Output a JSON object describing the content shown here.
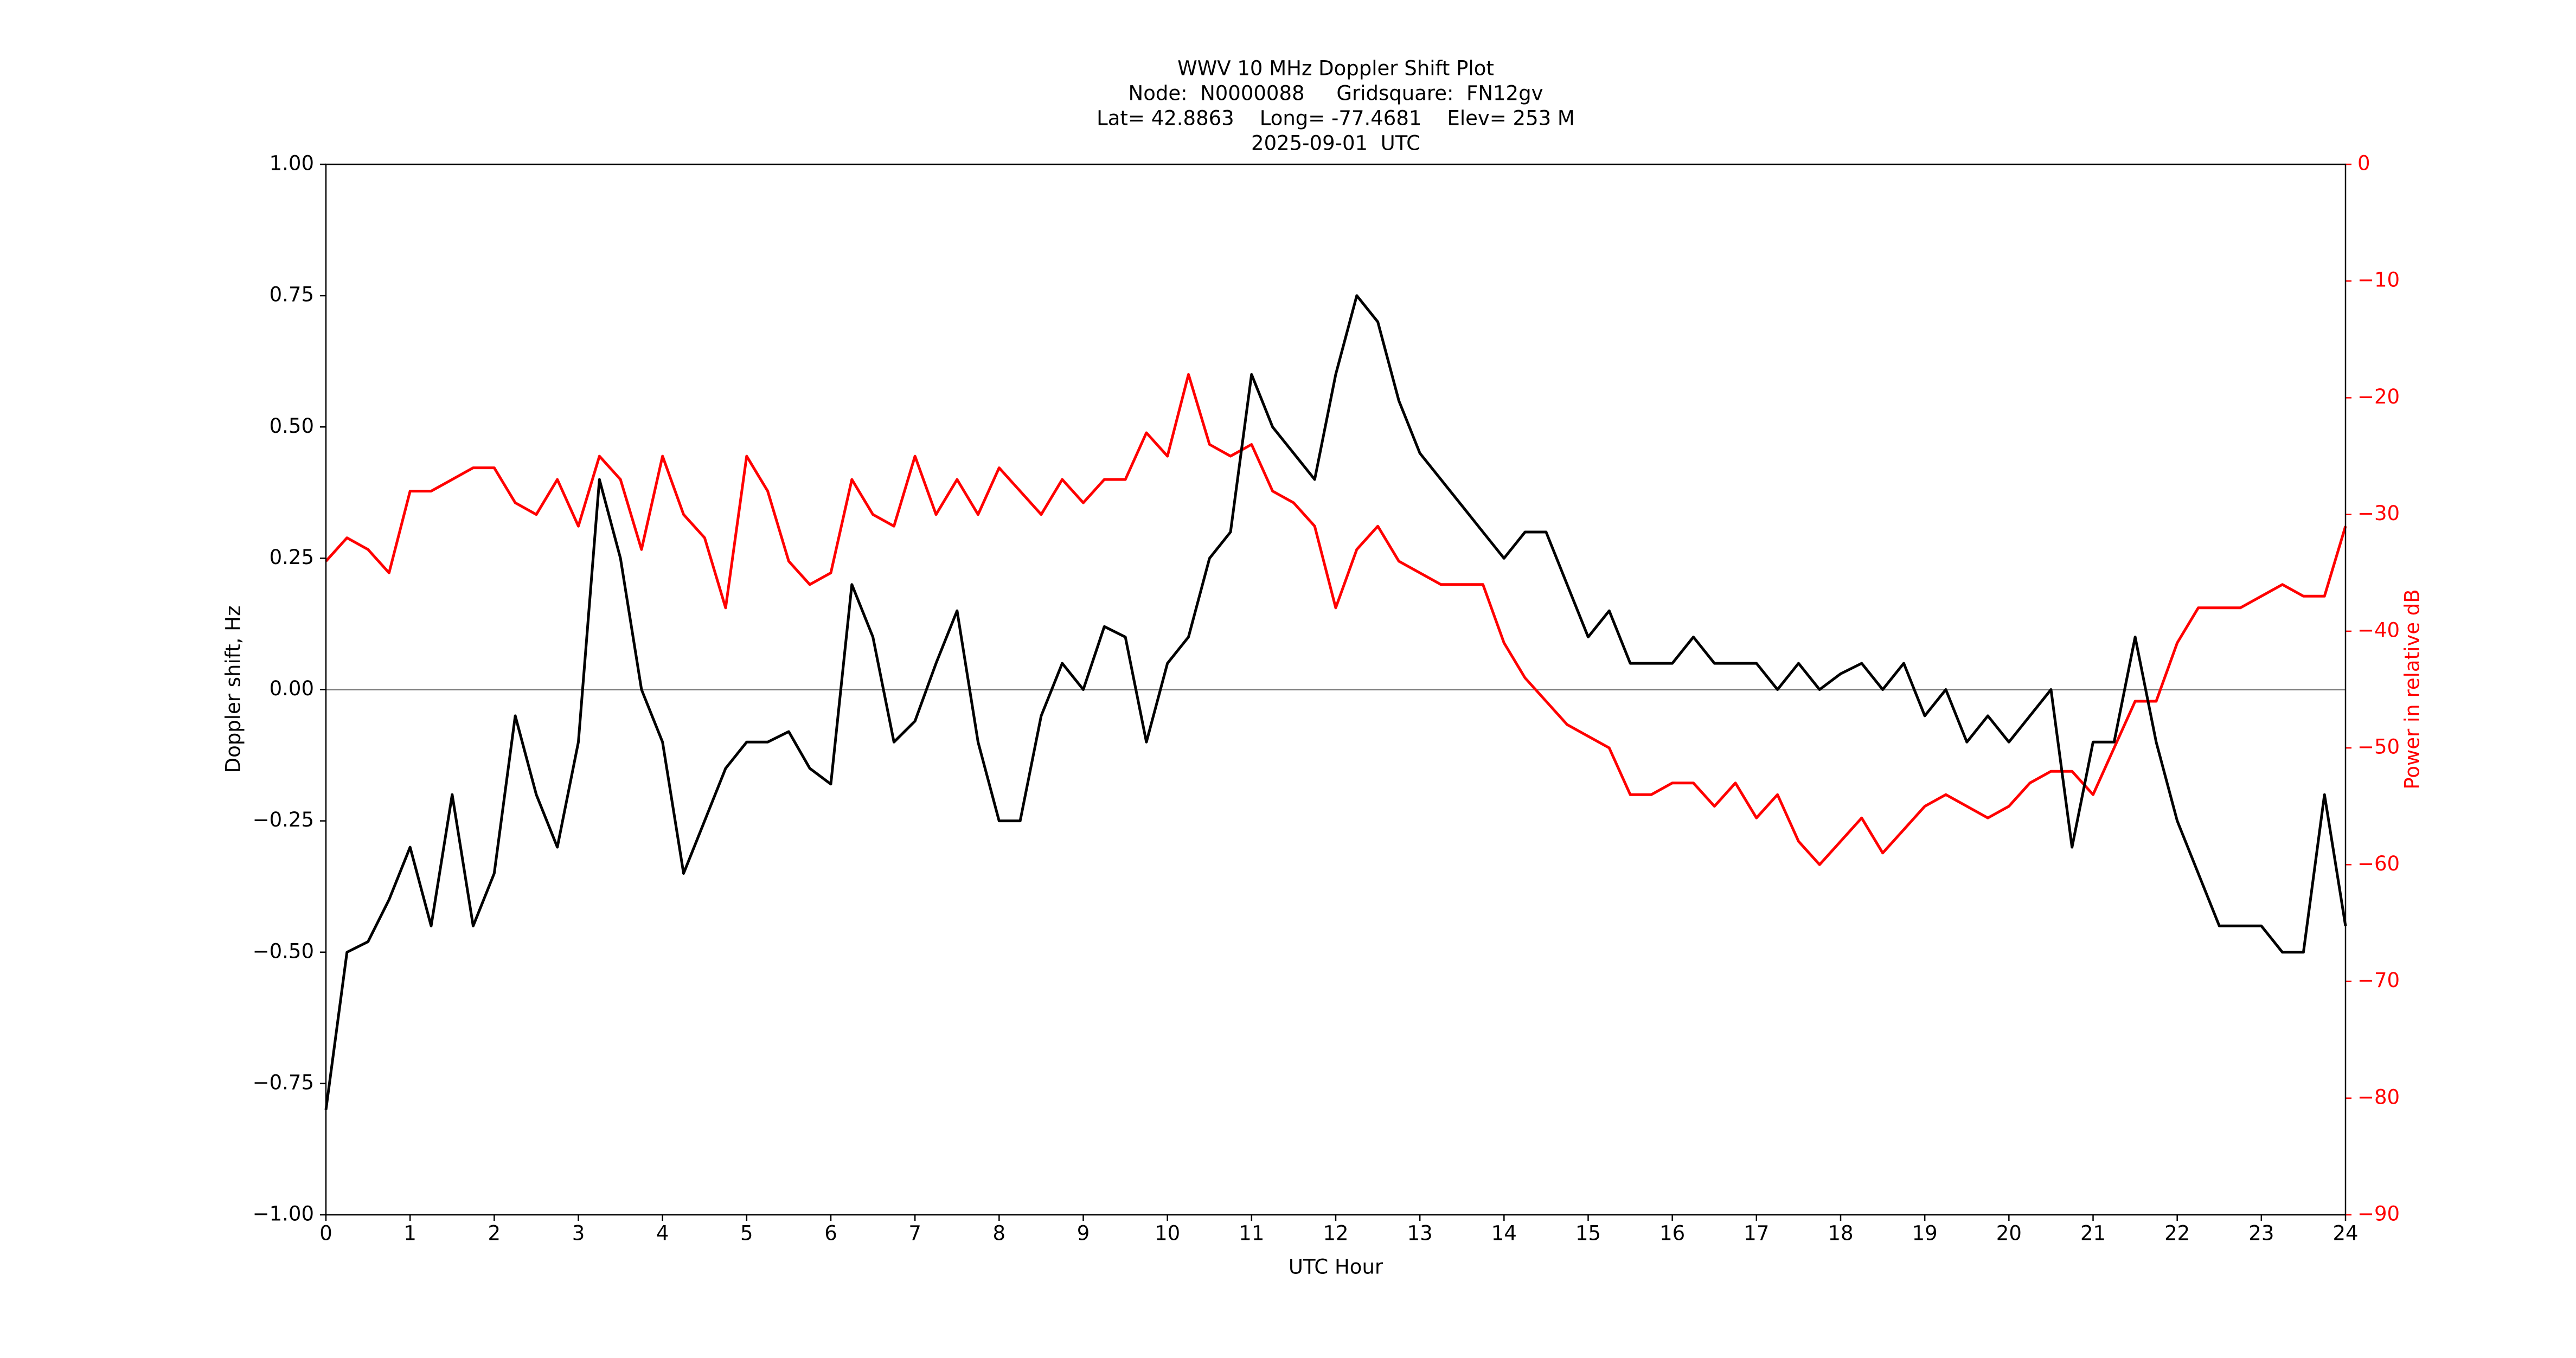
{
  "chart_data": {
    "type": "line",
    "title": [
      "WWV 10 MHz Doppler Shift Plot",
      "Node:  N0000088     Gridsquare:  FN12gv",
      "Lat= 42.8863    Long= -77.4681    Elev= 253 M",
      "2025-09-01  UTC"
    ],
    "xlabel": "UTC Hour",
    "ylabel": "Doppler shift, Hz",
    "y2label": "Power in relative dB",
    "x": [
      0,
      0.25,
      0.5,
      0.75,
      1,
      1.25,
      1.5,
      1.75,
      2,
      2.25,
      2.5,
      2.75,
      3,
      3.25,
      3.5,
      3.75,
      4,
      4.25,
      4.5,
      4.75,
      5,
      5.25,
      5.5,
      5.75,
      6,
      6.25,
      6.5,
      6.75,
      7,
      7.25,
      7.5,
      7.75,
      8,
      8.25,
      8.5,
      8.75,
      9,
      9.25,
      9.5,
      9.75,
      10,
      10.25,
      10.5,
      10.75,
      11,
      11.25,
      11.5,
      11.75,
      12,
      12.25,
      12.5,
      12.75,
      13,
      13.25,
      13.5,
      13.75,
      14,
      14.25,
      14.5,
      14.75,
      15,
      15.25,
      15.5,
      15.75,
      16,
      16.25,
      16.5,
      16.75,
      17,
      17.25,
      17.5,
      17.75,
      18,
      18.25,
      18.5,
      18.75,
      19,
      19.25,
      19.5,
      19.75,
      20,
      20.25,
      20.5,
      20.75,
      21,
      21.25,
      21.5,
      21.75,
      22,
      22.25,
      22.5,
      22.75,
      23,
      23.25,
      23.5,
      23.75,
      24
    ],
    "series": [
      {
        "name": "Doppler shift",
        "color": "#000000",
        "axis": "y",
        "values": [
          -0.8,
          -0.5,
          -0.48,
          -0.4,
          -0.3,
          -0.45,
          -0.2,
          -0.45,
          -0.35,
          -0.05,
          -0.2,
          -0.3,
          -0.1,
          0.4,
          0.25,
          0.0,
          -0.1,
          -0.35,
          -0.25,
          -0.15,
          -0.1,
          -0.1,
          -0.08,
          -0.15,
          -0.18,
          0.2,
          0.1,
          -0.1,
          -0.06,
          0.05,
          0.15,
          -0.1,
          -0.25,
          -0.25,
          -0.05,
          0.05,
          0.0,
          0.12,
          0.1,
          -0.1,
          0.05,
          0.1,
          0.25,
          0.3,
          0.6,
          0.5,
          0.45,
          0.4,
          0.6,
          0.75,
          0.7,
          0.55,
          0.45,
          0.4,
          0.35,
          0.3,
          0.25,
          0.3,
          0.3,
          0.2,
          0.1,
          0.15,
          0.05,
          0.05,
          0.05,
          0.1,
          0.05,
          0.05,
          0.05,
          0.0,
          0.05,
          0.0,
          0.03,
          0.05,
          0.0,
          0.05,
          -0.05,
          0.0,
          -0.1,
          -0.05,
          -0.1,
          -0.05,
          0.0,
          -0.3,
          -0.1,
          -0.1,
          0.1,
          -0.1,
          -0.25,
          -0.35,
          -0.45,
          -0.45,
          -0.45,
          -0.5,
          -0.5,
          -0.2,
          -0.45
        ]
      },
      {
        "name": "Power",
        "color": "#ff0000",
        "axis": "y2",
        "values": [
          -34,
          -32,
          -33,
          -35,
          -28,
          -28,
          -27,
          -26,
          -26,
          -29,
          -30,
          -27,
          -31,
          -25,
          -27,
          -33,
          -25,
          -30,
          -32,
          -38,
          -25,
          -28,
          -34,
          -36,
          -35,
          -27,
          -30,
          -31,
          -25,
          -30,
          -27,
          -30,
          -26,
          -28,
          -30,
          -27,
          -29,
          -27,
          -27,
          -23,
          -25,
          -18,
          -24,
          -25,
          -24,
          -28,
          -29,
          -31,
          -38,
          -33,
          -31,
          -34,
          -35,
          -36,
          -36,
          -36,
          -41,
          -44,
          -46,
          -48,
          -49,
          -50,
          -54,
          -54,
          -53,
          -53,
          -55,
          -53,
          -56,
          -54,
          -58,
          -60,
          -58,
          -56,
          -59,
          -57,
          -55,
          -54,
          -55,
          -56,
          -55,
          -53,
          -52,
          -52,
          -54,
          -50,
          -46,
          -46,
          -41,
          -38,
          -38,
          -38,
          -37,
          -36,
          -37,
          -37,
          -31
        ]
      }
    ],
    "hline": 0,
    "xlim": [
      0,
      24
    ],
    "xticks": [
      0,
      1,
      2,
      3,
      4,
      5,
      6,
      7,
      8,
      9,
      10,
      11,
      12,
      13,
      14,
      15,
      16,
      17,
      18,
      19,
      20,
      21,
      22,
      23,
      24
    ],
    "ylim": [
      -1,
      1
    ],
    "yticks": [
      {
        "value": -1,
        "label": "−1.00"
      },
      {
        "value": -0.75,
        "label": "−0.75"
      },
      {
        "value": -0.5,
        "label": "−0.50"
      },
      {
        "value": -0.25,
        "label": "−0.25"
      },
      {
        "value": 0,
        "label": "0.00"
      },
      {
        "value": 0.25,
        "label": "0.25"
      },
      {
        "value": 0.5,
        "label": "0.50"
      },
      {
        "value": 0.75,
        "label": "0.75"
      },
      {
        "value": 1,
        "label": "1.00"
      }
    ],
    "y2lim": [
      -90,
      0
    ],
    "y2ticks": [
      {
        "value": -90,
        "label": "−90"
      },
      {
        "value": -80,
        "label": "−80"
      },
      {
        "value": -70,
        "label": "−70"
      },
      {
        "value": -60,
        "label": "−60"
      },
      {
        "value": -50,
        "label": "−50"
      },
      {
        "value": -40,
        "label": "−40"
      },
      {
        "value": -30,
        "label": "−30"
      },
      {
        "value": -20,
        "label": "−20"
      },
      {
        "value": -10,
        "label": "−10"
      },
      0
    ],
    "y2color": "#ff0000",
    "grid": false
  }
}
